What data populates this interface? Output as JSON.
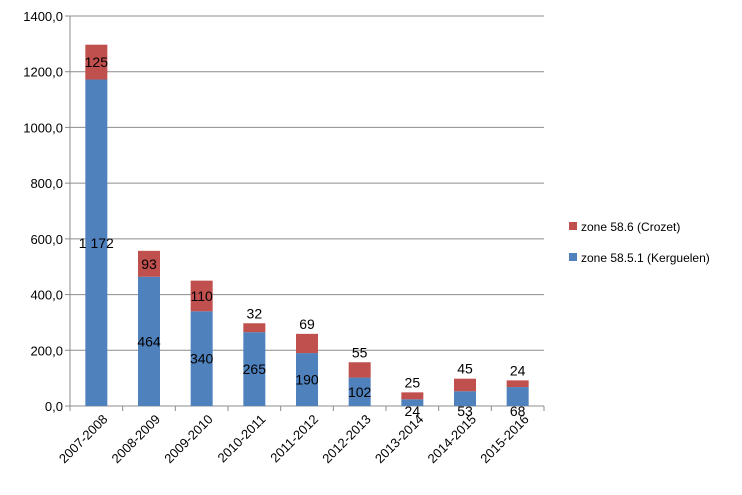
{
  "chart_data": {
    "type": "bar",
    "stacked": true,
    "title": "",
    "xlabel": "",
    "ylabel": "",
    "categories": [
      "2007-2008",
      "2008-2009",
      "2009-2010",
      "2010-2011",
      "2011-2012",
      "2012-2013",
      "2013-2014",
      "2014-2015",
      "2015-2016"
    ],
    "series": [
      {
        "name": "zone 58.5.1 (Kerguelen)",
        "color": "#4f81bd",
        "values": [
          1172,
          464,
          340,
          265,
          190,
          102,
          24,
          53,
          68
        ],
        "labels": [
          "1 172",
          "464",
          "340",
          "265",
          "190",
          "102",
          "24",
          "53",
          "68"
        ]
      },
      {
        "name": "zone 58.6 (Crozet)",
        "color": "#c0504d",
        "values": [
          125,
          93,
          110,
          32,
          69,
          55,
          25,
          45,
          24
        ],
        "labels": [
          "125",
          "93",
          "110",
          "32",
          "69",
          "55",
          "25",
          "45",
          "24"
        ]
      }
    ],
    "ylim": [
      0,
      1400
    ],
    "yticks": [
      0,
      200,
      400,
      600,
      800,
      1000,
      1200,
      1400
    ],
    "ytick_labels": [
      "0,0",
      "200,0",
      "400,0",
      "600,0",
      "800,0",
      "1000,0",
      "1200,0",
      "1400,0"
    ],
    "grid": true,
    "legend_position": "right",
    "legend_order": [
      "zone 58.6 (Crozet)",
      "zone 58.5.1 (Kerguelen)"
    ]
  }
}
